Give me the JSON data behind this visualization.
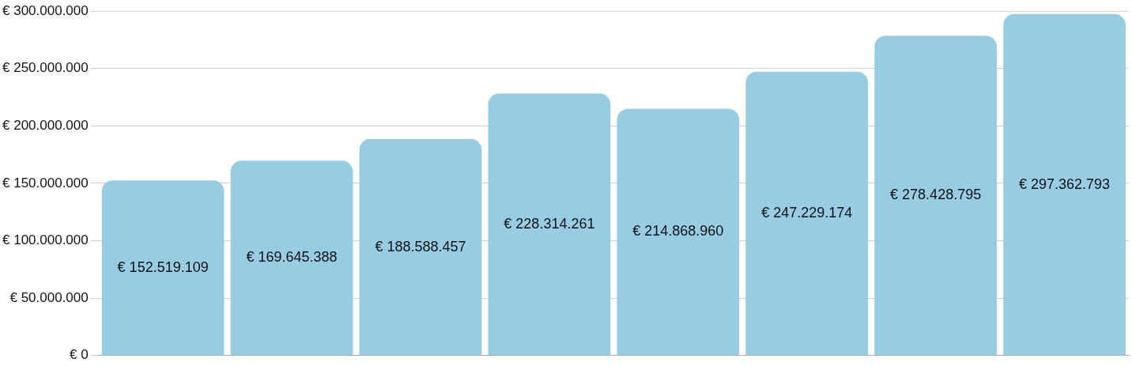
{
  "chart_data": {
    "type": "bar",
    "categories": [
      null,
      null,
      null,
      null,
      null,
      null,
      null,
      null
    ],
    "values": [
      152519109,
      169645388,
      188588457,
      228314261,
      214868960,
      247229174,
      278428795,
      297362793
    ],
    "value_labels": [
      "€ 152.519.109",
      "€ 169.645.388",
      "€ 188.588.457",
      "€ 228.314.261",
      "€ 214.868.960",
      "€ 247.229.174",
      "€ 278.428.795",
      "€ 297.362.793"
    ],
    "color": "#97cce3",
    "ylim": [
      0,
      300000000
    ],
    "yticks": [
      {
        "value": 0,
        "label": "€ 0"
      },
      {
        "value": 50000000,
        "label": "€ 50.000.000"
      },
      {
        "value": 100000000,
        "label": "€ 100.000.000"
      },
      {
        "value": 150000000,
        "label": "€ 150.000.000"
      },
      {
        "value": 200000000,
        "label": "€ 200.000.000"
      },
      {
        "value": 250000000,
        "label": "€ 250.000.000"
      },
      {
        "value": 300000000,
        "label": "€ 300.000.000"
      }
    ],
    "grid": "y",
    "legend": false
  }
}
